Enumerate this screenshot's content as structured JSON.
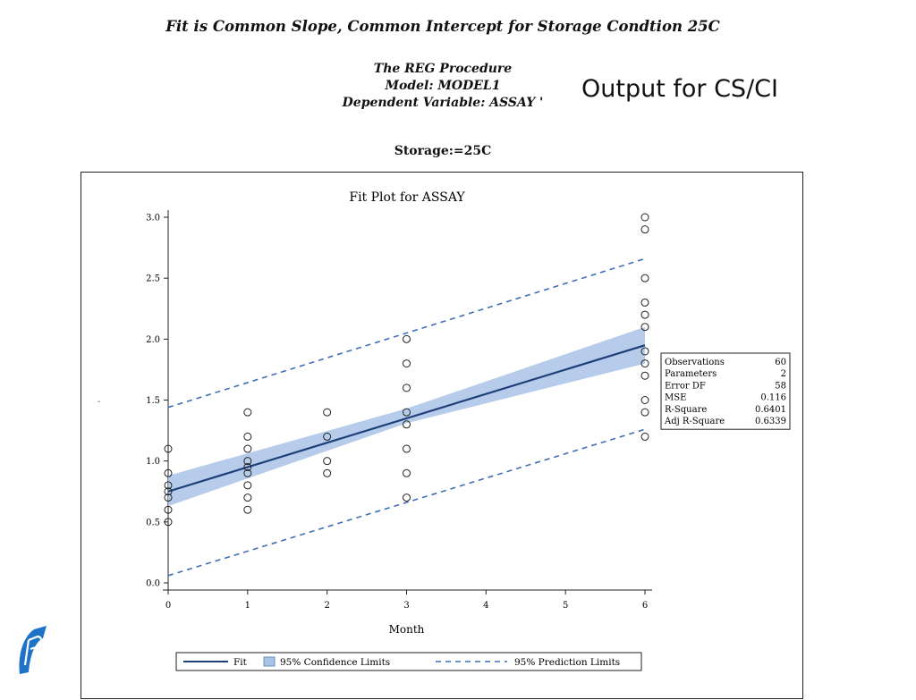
{
  "slide": {
    "title": "Fit is Common Slope, Common Intercept for Storage Condtion 25C",
    "procedure_lines": [
      "The REG Procedure",
      "Model: MODEL1",
      "Dependent Variable: ASSAY '"
    ],
    "annotation": "Output for CS/CI",
    "storage_label": "Storage:=25C"
  },
  "chart_data": {
    "type": "scatter",
    "title": "Fit Plot for ASSAY",
    "xlabel": "Month",
    "ylabel": "",
    "xlim": [
      0,
      6
    ],
    "ylim": [
      0,
      3
    ],
    "x_ticks": [
      "0",
      "1",
      "2",
      "3",
      "4",
      "5",
      "6"
    ],
    "y_ticks": [
      "0.0",
      "0.5",
      "1.0",
      "1.5",
      "2.0",
      "2.5",
      "3.0"
    ],
    "observations": [
      {
        "x": 0,
        "y": 0.5
      },
      {
        "x": 0,
        "y": 0.6
      },
      {
        "x": 0,
        "y": 0.7
      },
      {
        "x": 0,
        "y": 0.75
      },
      {
        "x": 0,
        "y": 0.8
      },
      {
        "x": 0,
        "y": 0.9
      },
      {
        "x": 0,
        "y": 1.1
      },
      {
        "x": 1,
        "y": 0.6
      },
      {
        "x": 1,
        "y": 0.7
      },
      {
        "x": 1,
        "y": 0.8
      },
      {
        "x": 1,
        "y": 0.9
      },
      {
        "x": 1,
        "y": 0.95
      },
      {
        "x": 1,
        "y": 1.0
      },
      {
        "x": 1,
        "y": 1.1
      },
      {
        "x": 1,
        "y": 1.2
      },
      {
        "x": 1,
        "y": 1.4
      },
      {
        "x": 2,
        "y": 0.9
      },
      {
        "x": 2,
        "y": 1.0
      },
      {
        "x": 2,
        "y": 1.2
      },
      {
        "x": 2,
        "y": 1.4
      },
      {
        "x": 3,
        "y": 0.7
      },
      {
        "x": 3,
        "y": 0.9
      },
      {
        "x": 3,
        "y": 1.1
      },
      {
        "x": 3,
        "y": 1.3
      },
      {
        "x": 3,
        "y": 1.4
      },
      {
        "x": 3,
        "y": 1.6
      },
      {
        "x": 3,
        "y": 1.8
      },
      {
        "x": 3,
        "y": 2.0
      },
      {
        "x": 6,
        "y": 1.2
      },
      {
        "x": 6,
        "y": 1.4
      },
      {
        "x": 6,
        "y": 1.5
      },
      {
        "x": 6,
        "y": 1.7
      },
      {
        "x": 6,
        "y": 1.8
      },
      {
        "x": 6,
        "y": 1.9
      },
      {
        "x": 6,
        "y": 2.1
      },
      {
        "x": 6,
        "y": 2.2
      },
      {
        "x": 6,
        "y": 2.3
      },
      {
        "x": 6,
        "y": 2.5
      },
      {
        "x": 6,
        "y": 2.9
      },
      {
        "x": 6,
        "y": 3.0
      }
    ],
    "fit": {
      "x": [
        0,
        6
      ],
      "y": [
        0.75,
        1.95
      ]
    },
    "confidence_limits": {
      "x": [
        0,
        3,
        6
      ],
      "lower": [
        0.63,
        1.31,
        1.8
      ],
      "upper": [
        0.88,
        1.43,
        2.1
      ]
    },
    "prediction_limits": {
      "x": [
        0,
        6
      ],
      "lower": [
        0.06,
        1.26
      ],
      "upper": [
        1.44,
        2.66
      ]
    },
    "stats_table": [
      {
        "label": "Observations",
        "value": "60"
      },
      {
        "label": "Parameters",
        "value": "2"
      },
      {
        "label": "Error DF",
        "value": "58"
      },
      {
        "label": "MSE",
        "value": "0.116"
      },
      {
        "label": "R-Square",
        "value": "0.6401"
      },
      {
        "label": "Adj R-Square",
        "value": "0.6339"
      }
    ],
    "legend": {
      "placement": "bottom",
      "items": [
        {
          "label": "Fit",
          "style": "solid-line"
        },
        {
          "label": "95% Confidence Limits",
          "style": "band"
        },
        {
          "label": "95% Prediction Limits",
          "style": "dashed-line"
        }
      ]
    },
    "colors": {
      "fit": "#1f3f7a",
      "band": "#a9c3e6",
      "prediction": "#3f6fb5",
      "marker": "#222222"
    }
  },
  "brand": {
    "logo_icon": "pf-logo-icon",
    "logo_color": "#1e73c8"
  }
}
